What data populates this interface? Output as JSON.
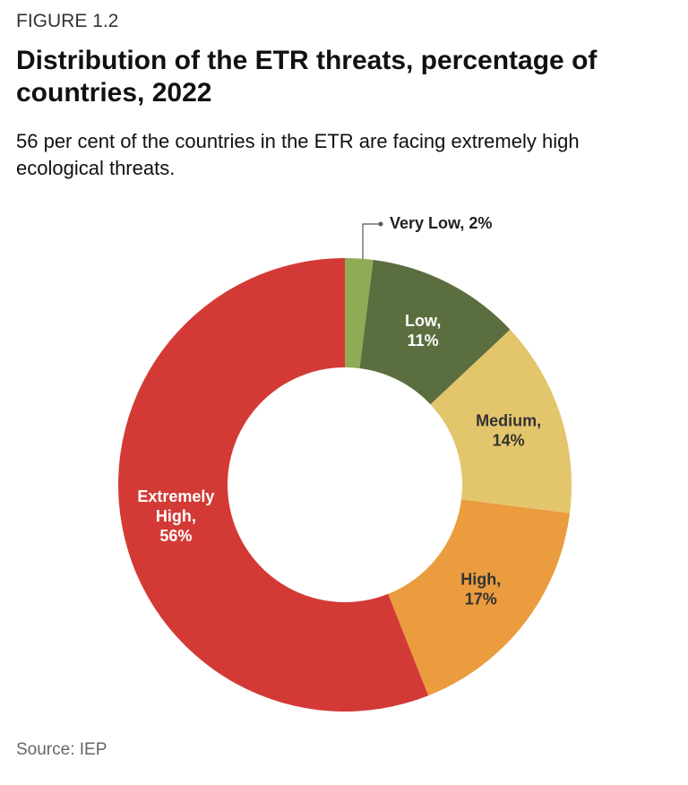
{
  "figure_label": "FIGURE 1.2",
  "chart_data": {
    "type": "donut",
    "title": "Distribution of the ETR threats, percentage of countries, 2022",
    "subtitle": "56 per cent of the countries in the ETR are facing extremely high ecological threats.",
    "values": [
      2,
      11,
      14,
      17,
      56
    ],
    "value_labels": [
      "Very Low, 2%",
      "Low, 11%",
      "Medium, 14%",
      "High, 17%",
      "Extremely High, 56%"
    ],
    "colors": [
      "#8fac55",
      "#5b6e3f",
      "#e3c56b",
      "#ea9c3f",
      "#d33a35"
    ]
  },
  "source": "Source: IEP"
}
